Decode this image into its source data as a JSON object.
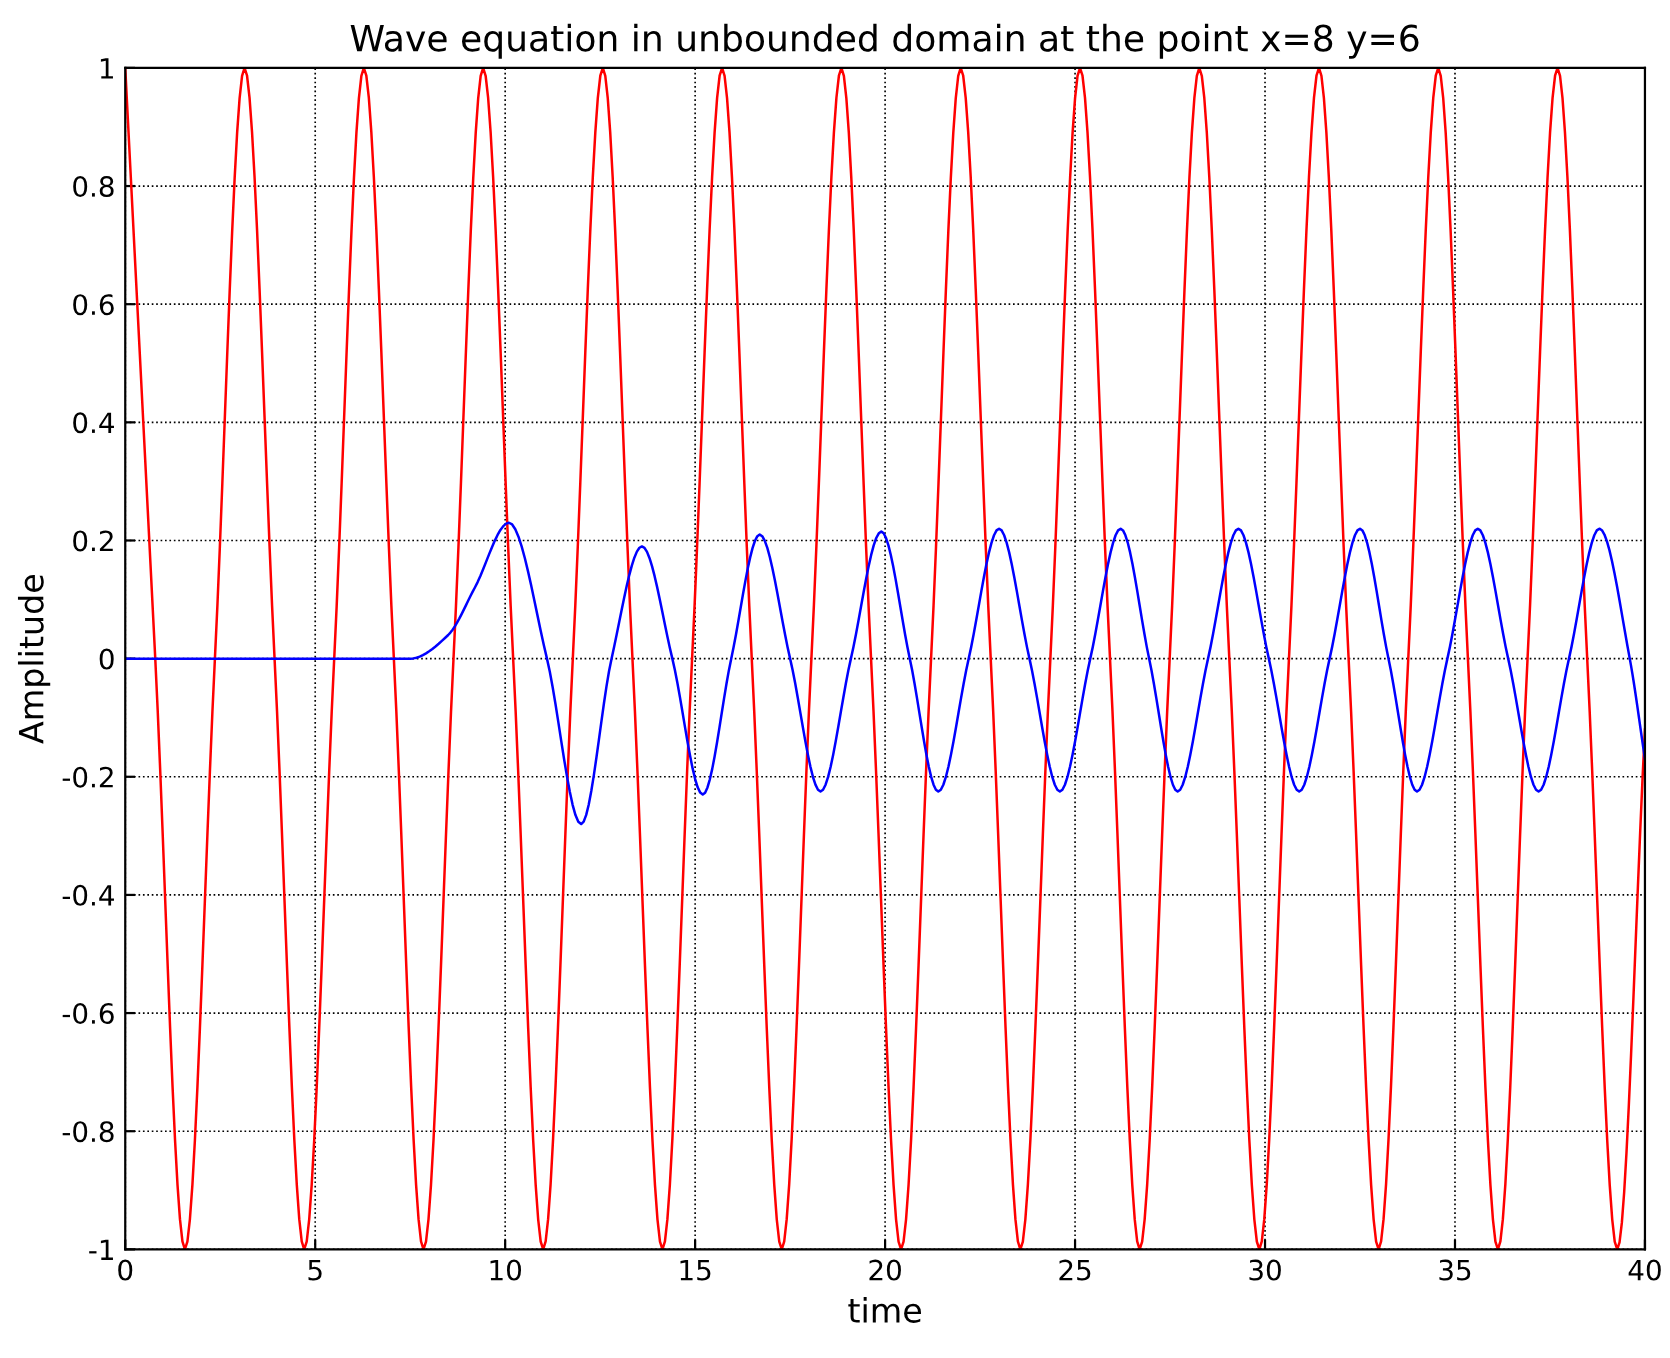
{
  "chart_data": {
    "type": "line",
    "title": "Wave equation in unbounded domain at the point x=8 y=6",
    "xlabel": "time",
    "ylabel": "Amplitude",
    "xlim": [
      0,
      40
    ],
    "ylim": [
      -1,
      1
    ],
    "xticks": [
      0,
      5,
      10,
      15,
      20,
      25,
      30,
      35,
      40
    ],
    "yticks": [
      -1,
      -0.8,
      -0.6,
      -0.4,
      -0.2,
      0,
      0.2,
      0.4,
      0.6,
      0.8,
      1
    ],
    "grid": true,
    "line_style": "solid",
    "series": [
      {
        "color": "#ff0000",
        "x": [
          0,
          0.79,
          1.57,
          2.36,
          3.14,
          3.93,
          4.71,
          5.5,
          6.28,
          7.07,
          7.85,
          8.64,
          9.42,
          10.21,
          11.0,
          11.78,
          12.57,
          13.35,
          14.14,
          14.92,
          15.71,
          16.49,
          17.28,
          18.06,
          18.85,
          19.63,
          20.42,
          21.21,
          21.99,
          22.78,
          23.56,
          24.35,
          25.13,
          25.92,
          26.7,
          27.49,
          28.27,
          29.06,
          29.85,
          30.63,
          31.42,
          32.2,
          32.99,
          33.77,
          34.56,
          35.34,
          36.13,
          36.91,
          37.7,
          38.48,
          39.27,
          40
        ],
        "values": [
          1,
          0,
          -1,
          0,
          1,
          0,
          -1,
          0,
          1,
          0,
          -1,
          0,
          1,
          0,
          -1,
          0,
          1,
          0,
          -1,
          0,
          1,
          0,
          -1,
          0,
          1,
          0,
          -1,
          0,
          1,
          0,
          -1,
          0,
          1,
          0,
          -1,
          0,
          1,
          0,
          -1,
          0,
          1,
          0,
          -1,
          0,
          1,
          0,
          -1,
          0,
          1,
          0,
          -1,
          -0.12
        ]
      },
      {
        "color": "#0000ff",
        "x": [
          0,
          7.5,
          8.5,
          9.2,
          10.1,
          11.1,
          12.0,
          12.8,
          13.6,
          14.4,
          15.2,
          15.95,
          16.7,
          17.5,
          18.3,
          19.1,
          19.9,
          20.65,
          21.4,
          22.2,
          23.0,
          23.8,
          24.6,
          25.4,
          26.2,
          26.95,
          27.7,
          28.5,
          29.3,
          30.1,
          30.9,
          31.7,
          32.5,
          33.25,
          34.0,
          34.8,
          35.6,
          36.4,
          37.2,
          38.0,
          38.8,
          39.6,
          40
        ],
        "values": [
          0,
          0,
          0.04,
          0.12,
          0.23,
          0,
          -0.28,
          0,
          0.19,
          0,
          -0.23,
          0,
          0.21,
          0,
          -0.225,
          0,
          0.215,
          0,
          -0.225,
          0,
          0.22,
          0,
          -0.225,
          0,
          0.22,
          0,
          -0.225,
          0,
          0.22,
          0,
          -0.225,
          0,
          0.22,
          0,
          -0.225,
          0,
          0.22,
          0,
          -0.225,
          0,
          0.22,
          0,
          -0.17
        ]
      }
    ]
  }
}
